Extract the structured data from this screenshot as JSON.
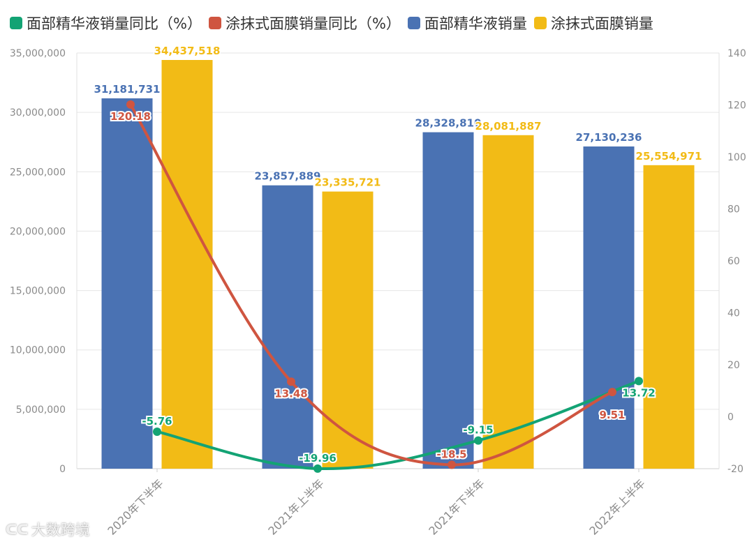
{
  "legend": {
    "items": [
      {
        "label": "面部精华液销量同比（%）",
        "color": "#13a374"
      },
      {
        "label": "涂抹式面膜销量同比（%）",
        "color": "#cf5540"
      },
      {
        "label": "面部精华液销量",
        "color": "#4a72b3"
      },
      {
        "label": "涂抹式面膜销量",
        "color": "#f2bb16"
      }
    ]
  },
  "watermark": {
    "logo": "ᑕᑕ",
    "text": "大数跨境"
  },
  "chart_data": {
    "type": "bar",
    "categories": [
      "2020年下半年",
      "2021年上半年",
      "2021年下半年",
      "2022年上半年"
    ],
    "series": [
      {
        "name": "面部精华液销量",
        "type": "bar",
        "axis": "left",
        "color": "#4a72b3",
        "values": [
          31181731,
          23857889,
          28328810,
          27130236
        ],
        "labels": [
          "31,181,731",
          "23,857,889",
          "28,328,810",
          "27,130,236"
        ]
      },
      {
        "name": "涂抹式面膜销量",
        "type": "bar",
        "axis": "left",
        "color": "#f2bb16",
        "values": [
          34437518,
          23335721,
          28081887,
          25554971
        ],
        "labels": [
          "34,437,518",
          "23,335,721",
          "28,081,887",
          "25,554,971"
        ]
      },
      {
        "name": "面部精华液销量同比（%）",
        "type": "line",
        "axis": "right",
        "color": "#13a374",
        "values": [
          -5.76,
          -19.96,
          -9.15,
          13.72
        ],
        "labels": [
          "-5.76",
          "-19.96",
          "-9.15",
          "13.72"
        ]
      },
      {
        "name": "涂抹式面膜销量同比（%）",
        "type": "line",
        "axis": "right",
        "color": "#cf5540",
        "values": [
          120.18,
          13.48,
          -18.5,
          9.51
        ],
        "labels": [
          "120.18",
          "13.48",
          "-18.5",
          "9.51"
        ]
      }
    ],
    "y_left": {
      "ylim": [
        0,
        35000000
      ],
      "ticks": [
        "0",
        "5,000,000",
        "10,000,000",
        "15,000,000",
        "20,000,000",
        "25,000,000",
        "30,000,000",
        "35,000,000"
      ]
    },
    "y_right": {
      "ylim": [
        -20,
        140
      ],
      "ticks": [
        "-20",
        "0",
        "20",
        "40",
        "60",
        "80",
        "100",
        "120",
        "140"
      ]
    },
    "grid": true,
    "legend_position": "top-left"
  }
}
